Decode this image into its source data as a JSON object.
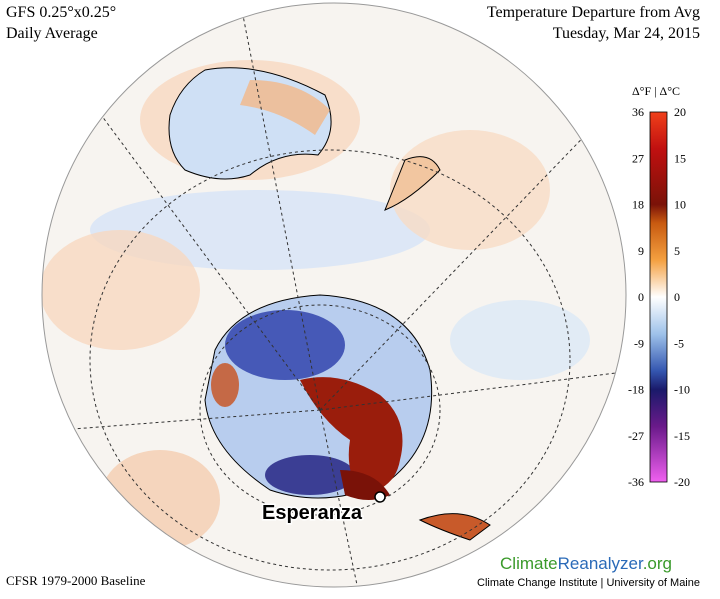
{
  "header": {
    "model": "GFS 0.25°x0.25°",
    "period": "Daily Average",
    "title": "Temperature Departure from Avg",
    "date": "Tuesday, Mar 24, 2015"
  },
  "legend": {
    "unit_label": "Δ°F | Δ°C",
    "fahrenheit_ticks": [
      36,
      27,
      18,
      9,
      0,
      -9,
      -18,
      -27,
      -36
    ],
    "celsius_ticks": [
      20,
      15,
      10,
      5,
      0,
      -5,
      -10,
      -15,
      -20
    ]
  },
  "map": {
    "place_label": "Esperanza"
  },
  "footer": {
    "baseline": "CFSR 1979-2000 Baseline",
    "brand": [
      "Climate",
      "Reanalyzer",
      ".org"
    ],
    "credit": "Climate Change Institute | University of Maine"
  }
}
